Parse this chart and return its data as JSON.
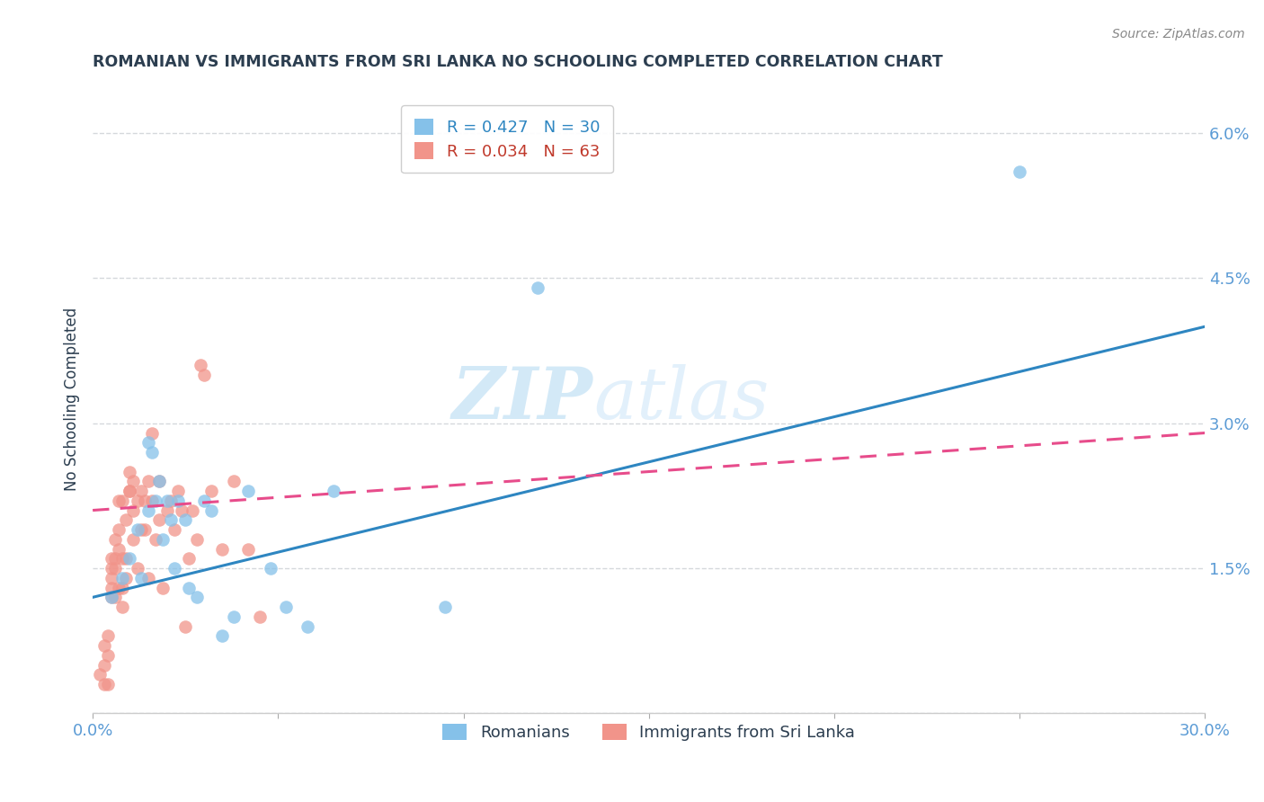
{
  "title": "ROMANIAN VS IMMIGRANTS FROM SRI LANKA NO SCHOOLING COMPLETED CORRELATION CHART",
  "source": "Source: ZipAtlas.com",
  "ylabel": "No Schooling Completed",
  "xlim": [
    0.0,
    0.3
  ],
  "ylim": [
    0.0,
    0.065
  ],
  "yticks": [
    0.0,
    0.015,
    0.03,
    0.045,
    0.06
  ],
  "ytick_labels": [
    "",
    "1.5%",
    "3.0%",
    "4.5%",
    "6.0%"
  ],
  "xticks": [
    0.0,
    0.05,
    0.1,
    0.15,
    0.2,
    0.25,
    0.3
  ],
  "xtick_labels": [
    "0.0%",
    "",
    "",
    "",
    "",
    "",
    "30.0%"
  ],
  "legend_r1": "R = 0.427   N = 30",
  "legend_r2": "R = 0.034   N = 63",
  "legend_label1": "Romanians",
  "legend_label2": "Immigrants from Sri Lanka",
  "blue_color": "#85c1e9",
  "pink_color": "#f1948a",
  "blue_line_color": "#2e86c1",
  "pink_line_color": "#e74c8b",
  "watermark_zip": "ZIP",
  "watermark_atlas": "atlas",
  "blue_scatter_x": [
    0.005,
    0.008,
    0.01,
    0.012,
    0.013,
    0.015,
    0.015,
    0.016,
    0.017,
    0.018,
    0.019,
    0.02,
    0.021,
    0.022,
    0.023,
    0.025,
    0.026,
    0.028,
    0.03,
    0.032,
    0.035,
    0.038,
    0.042,
    0.048,
    0.052,
    0.058,
    0.065,
    0.095,
    0.12,
    0.25
  ],
  "blue_scatter_y": [
    0.012,
    0.014,
    0.016,
    0.019,
    0.014,
    0.021,
    0.028,
    0.027,
    0.022,
    0.024,
    0.018,
    0.022,
    0.02,
    0.015,
    0.022,
    0.02,
    0.013,
    0.012,
    0.022,
    0.021,
    0.008,
    0.01,
    0.023,
    0.015,
    0.011,
    0.009,
    0.023,
    0.011,
    0.044,
    0.056
  ],
  "pink_scatter_x": [
    0.002,
    0.003,
    0.003,
    0.003,
    0.004,
    0.004,
    0.004,
    0.005,
    0.005,
    0.005,
    0.005,
    0.005,
    0.006,
    0.006,
    0.006,
    0.006,
    0.007,
    0.007,
    0.007,
    0.007,
    0.008,
    0.008,
    0.008,
    0.008,
    0.009,
    0.009,
    0.009,
    0.01,
    0.01,
    0.01,
    0.011,
    0.011,
    0.011,
    0.012,
    0.012,
    0.013,
    0.013,
    0.014,
    0.014,
    0.015,
    0.015,
    0.016,
    0.016,
    0.017,
    0.018,
    0.018,
    0.019,
    0.02,
    0.021,
    0.022,
    0.023,
    0.024,
    0.025,
    0.026,
    0.027,
    0.028,
    0.029,
    0.03,
    0.032,
    0.035,
    0.038,
    0.042,
    0.045
  ],
  "pink_scatter_y": [
    0.004,
    0.003,
    0.005,
    0.007,
    0.003,
    0.006,
    0.008,
    0.012,
    0.013,
    0.014,
    0.015,
    0.016,
    0.012,
    0.015,
    0.016,
    0.018,
    0.013,
    0.017,
    0.019,
    0.022,
    0.011,
    0.013,
    0.016,
    0.022,
    0.014,
    0.016,
    0.02,
    0.023,
    0.023,
    0.025,
    0.018,
    0.021,
    0.024,
    0.015,
    0.022,
    0.019,
    0.023,
    0.019,
    0.022,
    0.014,
    0.024,
    0.022,
    0.029,
    0.018,
    0.02,
    0.024,
    0.013,
    0.021,
    0.022,
    0.019,
    0.023,
    0.021,
    0.009,
    0.016,
    0.021,
    0.018,
    0.036,
    0.035,
    0.023,
    0.017,
    0.024,
    0.017,
    0.01
  ],
  "blue_line_x": [
    0.0,
    0.3
  ],
  "blue_line_y": [
    0.012,
    0.04
  ],
  "pink_line_x": [
    0.0,
    0.3
  ],
  "pink_line_y": [
    0.021,
    0.029
  ],
  "grid_color": "#d5d8dc",
  "background_color": "#ffffff",
  "title_color": "#2c3e50",
  "tick_color": "#5b9bd5",
  "legend_r1_color": "#2e86c1",
  "legend_r2_color": "#c0392b"
}
